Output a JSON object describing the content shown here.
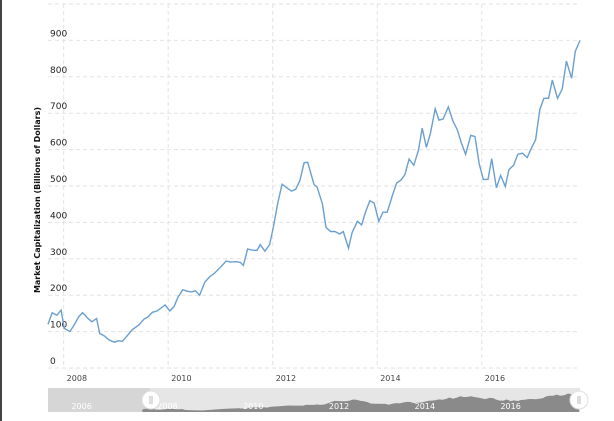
{
  "chart_data": {
    "type": "line",
    "title": "",
    "xlabel": "",
    "ylabel": "Market Capitalization (Billions of Dollars)",
    "ylim": [
      0,
      1000
    ],
    "xlim": [
      2007.7,
      2017.88
    ],
    "y_ticks": [
      "0",
      "100",
      "200",
      "300",
      "400",
      "500",
      "600",
      "700",
      "800",
      "900"
    ],
    "x_ticks": [
      "2008",
      "2010",
      "2012",
      "2014",
      "2016"
    ],
    "grid": true,
    "line_color": "#6a9fcf",
    "series": [
      {
        "name": "Market Capitalization",
        "x": [
          2007.7,
          2007.78,
          2007.87,
          2007.95,
          2008.01,
          2008.12,
          2008.2,
          2008.29,
          2008.36,
          2008.48,
          2008.54,
          2008.63,
          2008.69,
          2008.78,
          2008.87,
          2008.97,
          2009.05,
          2009.12,
          2009.2,
          2009.31,
          2009.44,
          2009.54,
          2009.6,
          2009.7,
          2009.79,
          2009.94,
          2010.03,
          2010.11,
          2010.19,
          2010.28,
          2010.36,
          2010.45,
          2010.52,
          2010.6,
          2010.7,
          2010.79,
          2010.89,
          2011.0,
          2011.11,
          2011.19,
          2011.3,
          2011.38,
          2011.44,
          2011.52,
          2011.6,
          2011.7,
          2011.76,
          2011.85,
          2011.94,
          2012.01,
          2012.1,
          2012.18,
          2012.27,
          2012.36,
          2012.44,
          2012.52,
          2012.6,
          2012.67,
          2012.79,
          2012.85,
          2012.95,
          2013.02,
          2013.11,
          2013.19,
          2013.28,
          2013.35,
          2013.45,
          2013.52,
          2013.62,
          2013.7,
          2013.78,
          2013.86,
          2013.94,
          2014.03,
          2014.11,
          2014.19,
          2014.29,
          2014.37,
          2014.45,
          2014.53,
          2014.61,
          2014.7,
          2014.79,
          2014.86,
          2014.94,
          2015.02,
          2015.11,
          2015.18,
          2015.26,
          2015.36,
          2015.45,
          2015.53,
          2015.61,
          2015.69,
          2015.79,
          2015.87,
          2015.95,
          2016.03,
          2016.12,
          2016.19,
          2016.28,
          2016.36,
          2016.45,
          2016.52,
          2016.61,
          2016.69,
          2016.78,
          2016.87,
          2016.95,
          2017.03,
          2017.11,
          2017.19,
          2017.28,
          2017.35,
          2017.45,
          2017.54,
          2017.62,
          2017.72,
          2017.79,
          2017.88
        ],
        "values": [
          120,
          152,
          145,
          159,
          109,
          100,
          118,
          141,
          152,
          134,
          127,
          136,
          95,
          88,
          77,
          71,
          75,
          73,
          86,
          105,
          118,
          135,
          139,
          153,
          157,
          173,
          157,
          168,
          195,
          215,
          211,
          209,
          212,
          200,
          236,
          250,
          261,
          277,
          294,
          291,
          292,
          290,
          282,
          327,
          324,
          323,
          339,
          321,
          339,
          385,
          455,
          505,
          495,
          486,
          491,
          515,
          564,
          565,
          504,
          497,
          451,
          386,
          375,
          375,
          368,
          375,
          329,
          372,
          403,
          393,
          430,
          460,
          453,
          403,
          428,
          428,
          474,
          508,
          516,
          531,
          574,
          557,
          599,
          659,
          606,
          646,
          712,
          681,
          684,
          717,
          678,
          655,
          618,
          587,
          639,
          636,
          562,
          518,
          518,
          575,
          495,
          529,
          499,
          545,
          557,
          587,
          590,
          578,
          604,
          627,
          710,
          741,
          741,
          791,
          741,
          766,
          843,
          796,
          870,
          900
        ]
      }
    ],
    "navigator": {
      "labels": [
        "2006",
        "2008",
        "2010",
        "2012",
        "2014",
        "2016"
      ],
      "selected_range": [
        2007.7,
        2017.88
      ]
    }
  }
}
